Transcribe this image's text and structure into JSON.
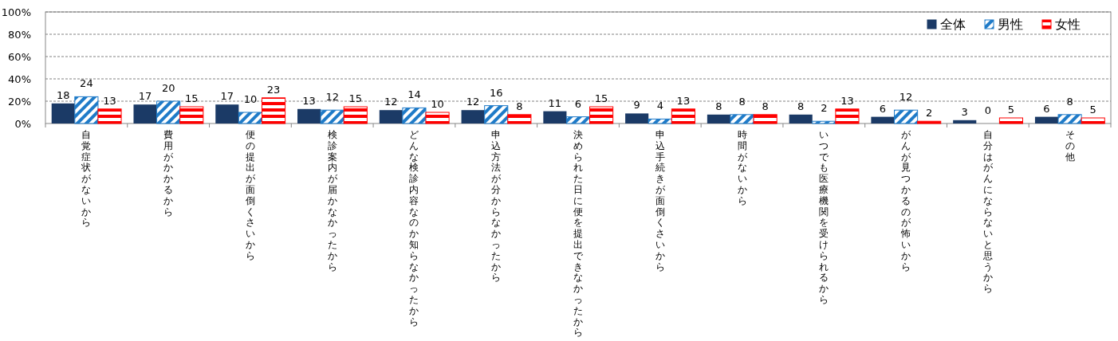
{
  "chart_data": {
    "type": "bar",
    "categories": [
      "自覚症状がないから",
      "費用がかかるから",
      "便の提出が面倒くさいから",
      "検診案内が届かなかったから",
      "どんな検診内容なのか知らなかったから",
      "申込方法が分からなかったから",
      "決められた日に便を提出できなかったから",
      "申込手続きが面倒くさいから",
      "時間がないから",
      "いつでも医療機関を受けられるから",
      "がんが見つかるのが怖いから",
      "自分はがんにならないと思うから",
      "その他"
    ],
    "series": [
      {
        "name": "全体",
        "color": "#1b3a66",
        "values": [
          18,
          17,
          17,
          13,
          12,
          12,
          11,
          9,
          8,
          8,
          6,
          3,
          6
        ]
      },
      {
        "name": "男性",
        "color": "#1f7bc8",
        "values": [
          24,
          20,
          10,
          12,
          14,
          16,
          6,
          4,
          8,
          2,
          12,
          0,
          8
        ]
      },
      {
        "name": "女性",
        "color": "#ff0000",
        "values": [
          13,
          15,
          23,
          15,
          10,
          8,
          15,
          13,
          8,
          13,
          2,
          5,
          5
        ]
      }
    ],
    "ylim": [
      0,
      100
    ],
    "yticks": [
      {
        "value": 0,
        "label": "0%"
      },
      {
        "value": 20,
        "label": "20%"
      },
      {
        "value": 40,
        "label": "40%"
      },
      {
        "value": 60,
        "label": "60%"
      },
      {
        "value": 80,
        "label": "80%"
      },
      {
        "value": 100,
        "label": "100%"
      }
    ],
    "grid": "y",
    "legend": "top right",
    "data_labels": true
  }
}
